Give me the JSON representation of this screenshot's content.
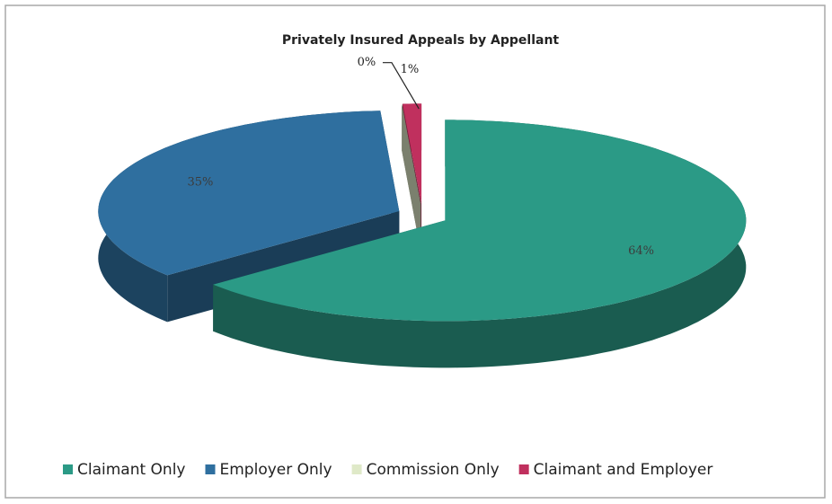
{
  "chart_data": {
    "type": "pie3d",
    "title": "Privately Insured Appeals by Appellant",
    "categories": [
      "Claimant Only",
      "Employer Only",
      "Commission Only",
      "Claimant and Employer"
    ],
    "values": [
      64,
      35,
      0,
      1
    ],
    "value_labels": [
      "64%",
      "35%",
      "0%",
      "1%"
    ],
    "colors": [
      "#2b9a86",
      "#2f6f9f",
      "#dfe9c8",
      "#c0305e"
    ],
    "legend": "bottom"
  }
}
